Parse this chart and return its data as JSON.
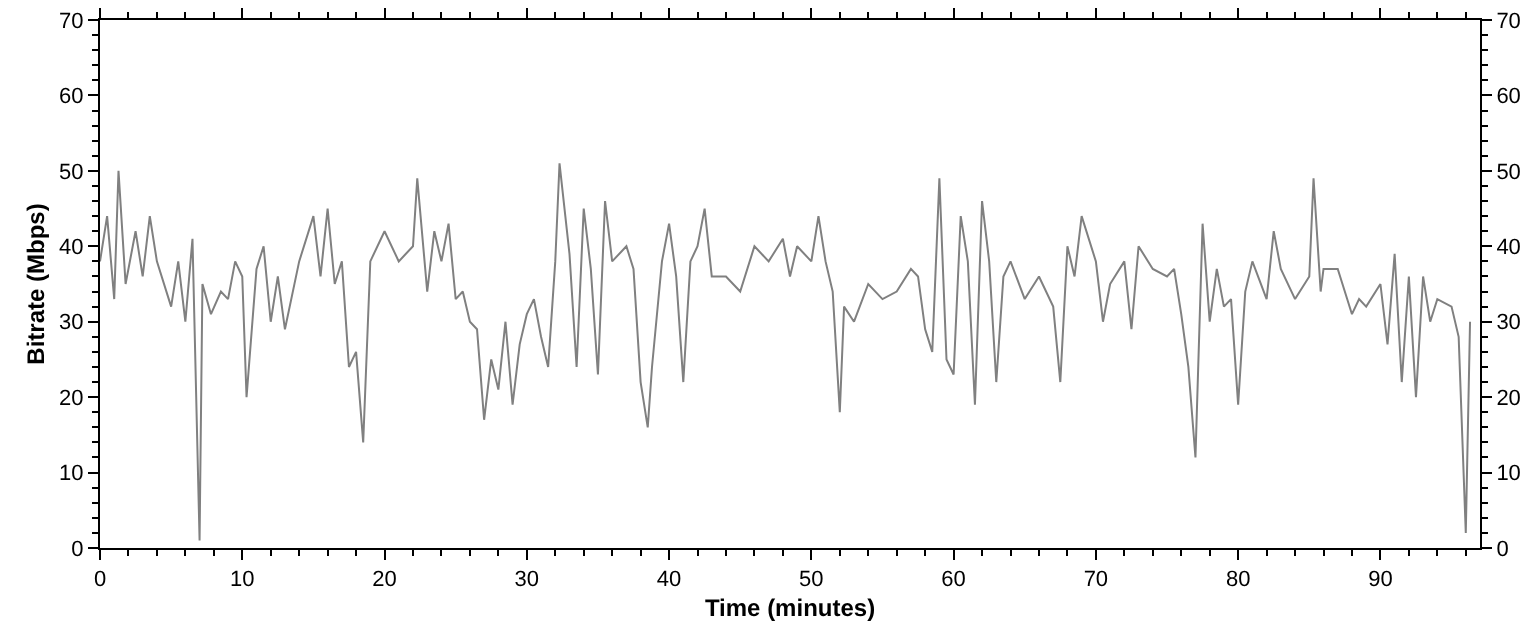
{
  "chart_data": {
    "type": "line",
    "xlabel": "Time (minutes)",
    "ylabel": "Bitrate (Mbps)",
    "xlim": [
      0,
      97
    ],
    "xticks": [
      0,
      10,
      20,
      30,
      40,
      50,
      60,
      70,
      80,
      90
    ],
    "ylim": [
      0,
      70
    ],
    "yticks": [
      0,
      10,
      20,
      30,
      40,
      50,
      60,
      70
    ],
    "y2lim": [
      0,
      70
    ],
    "y2ticks": [
      0,
      10,
      20,
      30,
      40,
      50,
      60,
      70
    ],
    "marker": "none",
    "line_style": "solid",
    "series": [
      {
        "color": "#808080",
        "x": [
          0,
          0.5,
          1,
          1.3,
          1.8,
          2.5,
          3,
          3.5,
          4,
          5,
          5.5,
          6,
          6.5,
          7,
          7.2,
          7.8,
          8.5,
          9,
          9.5,
          10,
          10.3,
          11,
          11.5,
          12,
          12.5,
          13,
          14,
          15,
          15.5,
          16,
          16.5,
          17,
          17.5,
          18,
          18.5,
          19,
          20,
          21,
          22,
          22.3,
          23,
          23.5,
          24,
          24.5,
          25,
          25.5,
          26,
          26.5,
          27,
          27.5,
          28,
          28.5,
          29,
          29.5,
          30,
          30.5,
          31,
          31.5,
          32,
          32.3,
          33,
          33.5,
          34,
          34.5,
          35,
          35.5,
          36,
          37,
          37.5,
          38,
          38.5,
          38.8,
          39.5,
          40,
          40.5,
          41,
          41.5,
          42,
          42.5,
          43,
          44,
          45,
          46,
          47,
          48,
          48.5,
          49,
          50,
          50.5,
          51,
          51.5,
          52,
          52.3,
          53,
          54,
          55,
          56,
          57,
          57.5,
          58,
          58.5,
          59,
          59.5,
          60,
          60.5,
          61,
          61.5,
          62,
          62.5,
          63,
          63.5,
          64,
          65,
          66,
          67,
          67.5,
          68,
          68.5,
          69,
          70,
          70.5,
          71,
          72,
          72.5,
          73,
          74,
          75,
          75.5,
          76,
          76.5,
          77,
          77.5,
          78,
          78.5,
          79,
          79.5,
          80,
          80.5,
          81,
          82,
          82.5,
          83,
          84,
          85,
          85.3,
          85.8,
          86,
          87,
          88,
          88.5,
          89,
          90,
          90.5,
          91,
          91.5,
          92,
          92.5,
          93,
          93.5,
          94,
          95,
          95.5,
          96,
          96.3
        ],
        "values": [
          38,
          44,
          33,
          50,
          35,
          42,
          36,
          44,
          38,
          32,
          38,
          30,
          41,
          1,
          35,
          31,
          34,
          33,
          38,
          36,
          20,
          37,
          40,
          30,
          36,
          29,
          38,
          44,
          36,
          45,
          35,
          38,
          24,
          26,
          14,
          38,
          42,
          38,
          40,
          49,
          34,
          42,
          38,
          43,
          33,
          34,
          30,
          29,
          17,
          25,
          21,
          30,
          19,
          27,
          31,
          33,
          28,
          24,
          38,
          51,
          39,
          24,
          45,
          37,
          23,
          46,
          38,
          40,
          37,
          22,
          16,
          24,
          38,
          43,
          36,
          22,
          38,
          40,
          45,
          36,
          36,
          34,
          40,
          38,
          41,
          36,
          40,
          38,
          44,
          38,
          34,
          18,
          32,
          30,
          35,
          33,
          34,
          37,
          36,
          29,
          26,
          49,
          25,
          23,
          44,
          38,
          19,
          46,
          38,
          22,
          36,
          38,
          33,
          36,
          32,
          22,
          40,
          36,
          44,
          38,
          30,
          35,
          38,
          29,
          40,
          37,
          36,
          37,
          31,
          24,
          12,
          43,
          30,
          37,
          32,
          33,
          19,
          34,
          38,
          33,
          42,
          37,
          33,
          36,
          49,
          34,
          37,
          37,
          31,
          33,
          32,
          35,
          27,
          39,
          22,
          36,
          20,
          36,
          30,
          33,
          32,
          28,
          2,
          30
        ]
      }
    ]
  }
}
